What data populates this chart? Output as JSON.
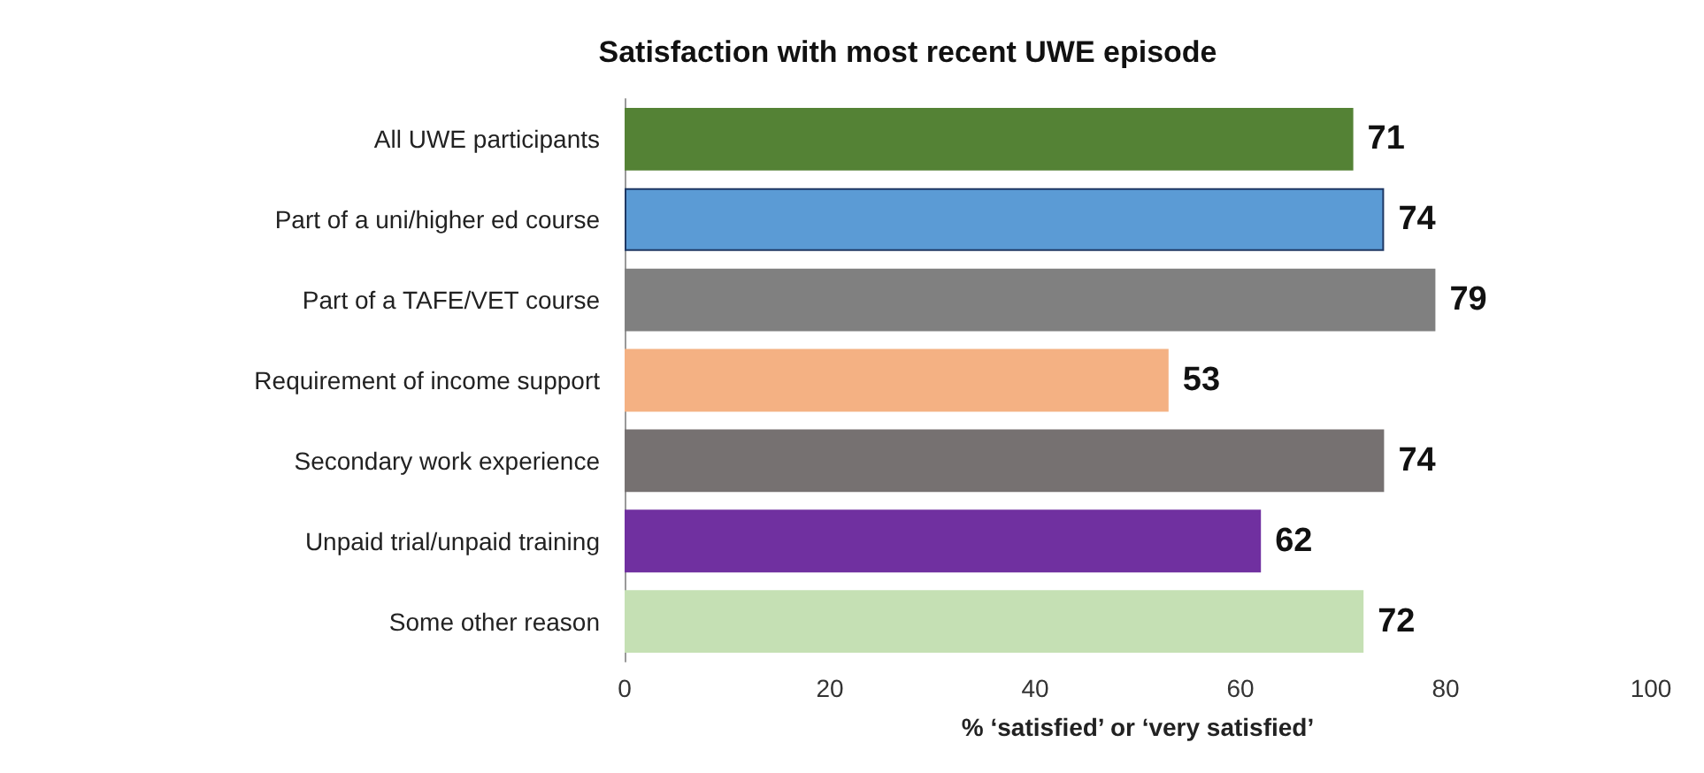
{
  "chart_data": {
    "type": "bar",
    "orientation": "horizontal",
    "title": "Satisfaction with most recent UWE episode",
    "xlabel": "% ‘satisfied’ or ‘very satisfied’",
    "categories": [
      "All UWE participants",
      "Part of a uni/higher ed course",
      "Part of a TAFE/VET course",
      "Requirement of income support",
      "Secondary work experience",
      "Unpaid trial/unpaid training",
      "Some other reason"
    ],
    "values": [
      71,
      74,
      79,
      53,
      74,
      62,
      72
    ],
    "colors": [
      "#548235",
      "#5b9bd5",
      "#808080",
      "#f4b183",
      "#767171",
      "#7030a0",
      "#c5e0b4"
    ],
    "xlim": [
      0,
      100
    ],
    "xticks": [
      0,
      20,
      40,
      60,
      80,
      100
    ],
    "grid": false,
    "data_labels": true
  }
}
